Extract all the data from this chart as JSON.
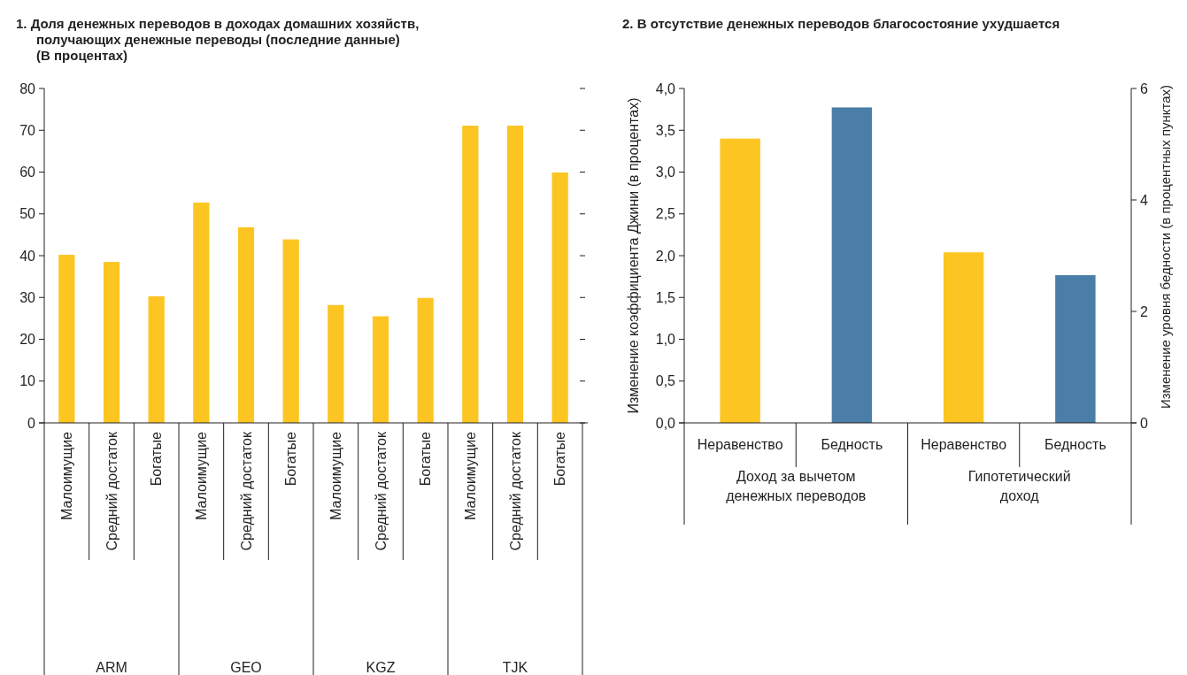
{
  "chart_data": [
    {
      "type": "bar",
      "title": "1. Доля денежных переводов в доходах домашних хозяйств, получающих денежные переводы (последние данные)",
      "subtitle": "(В процентах)",
      "categories": [
        "Малоимущие",
        "Средний достаток",
        "Богатые",
        "Малоимущие",
        "Средний достаток",
        "Богатые",
        "Малоимущие",
        "Средний достаток",
        "Богатые",
        "Малоимущие",
        "Средний достаток",
        "Богатые"
      ],
      "values": [
        40.2,
        38.5,
        30.3,
        52.7,
        46.8,
        43.9,
        28.2,
        25.5,
        29.9,
        71.1,
        71.1,
        59.9
      ],
      "color": "#fdc521",
      "ylim": [
        0,
        80
      ],
      "yticks": [
        0,
        10,
        20,
        30,
        40,
        50,
        60,
        70,
        80
      ],
      "annotations": [
        "ARM",
        "GEO",
        "KGZ",
        "TJK"
      ]
    },
    {
      "type": "bar",
      "title": "2. В отсутствие денежных переводов благосостояние ухудшается",
      "ylabel": "Изменение коэффициента Джини (в процентах)",
      "y2label": "Изменение уровня бедности (в процентных пунктах)",
      "categories": [
        "Неравенство",
        "Бедность",
        "Неравенство",
        "Бедность"
      ],
      "series": [
        {
          "color": "#fdc521",
          "values": [
            3.4,
            null,
            2.04,
            null
          ]
        },
        {
          "color": "#4a7ea8",
          "values": [
            null,
            5.66,
            null,
            2.65
          ],
          "axis": "y2"
        }
      ],
      "ylim": [
        0,
        4
      ],
      "yticks": [
        {
          "value": 0,
          "label": "0,0"
        },
        {
          "value": 0.5,
          "label": "0,5"
        },
        {
          "value": 1,
          "label": "1,0"
        },
        {
          "value": 1.5,
          "label": "1,5"
        },
        {
          "value": 2,
          "label": "2,0"
        },
        {
          "value": 2.5,
          "label": "2,5"
        },
        {
          "value": 3,
          "label": "3,0"
        },
        {
          "value": 3.5,
          "label": "3,5"
        },
        {
          "value": 4,
          "label": "4,0"
        }
      ],
      "y2lim": [
        0,
        6
      ],
      "y2ticks": [
        0,
        2,
        4,
        6
      ],
      "annotations": [
        "Доход за вычетом денежных переводов",
        "Гипотетический доход"
      ]
    }
  ]
}
